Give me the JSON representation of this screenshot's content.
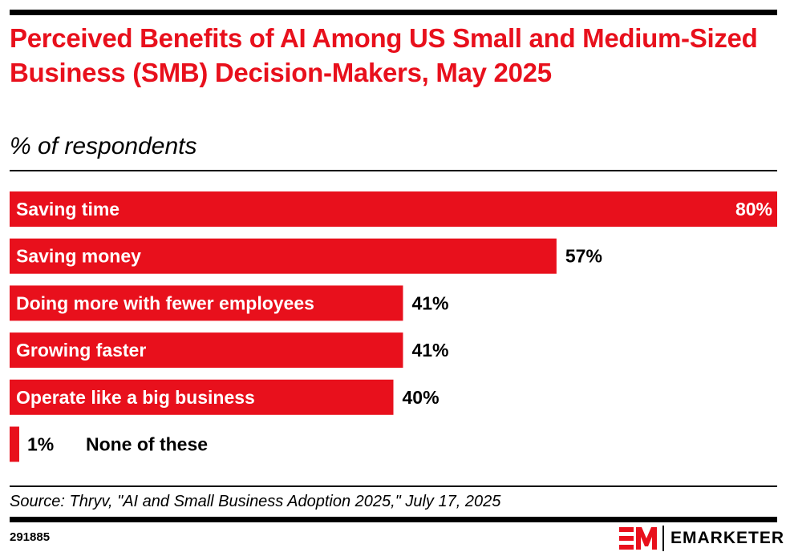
{
  "header": {
    "title": "Perceived Benefits of AI Among US Small and Medium-Sized Business (SMB) Decision-Makers, May 2025",
    "subtitle": "% of respondents"
  },
  "footer": {
    "source": "Source: Thryv, \"AI and Small Business Adoption 2025,\" July 17, 2025",
    "chart_id": "291885",
    "brand": "EMARKETER"
  },
  "colors": {
    "bar": "#e8101c",
    "title": "#e8101c",
    "text": "#000000"
  },
  "chart_data": {
    "type": "bar",
    "orientation": "horizontal",
    "title": "Perceived Benefits of AI Among US Small and Medium-Sized Business (SMB) Decision-Makers, May 2025",
    "subtitle": "% of respondents",
    "xlabel": "",
    "ylabel": "",
    "xlim": [
      0,
      80
    ],
    "grid": false,
    "legend": "none",
    "categories": [
      "Saving time",
      "Saving money",
      "Doing more with fewer employees",
      "Growing faster",
      "Operate like a big business",
      "None of these"
    ],
    "values": [
      80,
      57,
      41,
      41,
      40,
      1
    ],
    "value_labels": [
      "80%",
      "57%",
      "41%",
      "41%",
      "40%",
      "1%"
    ]
  }
}
